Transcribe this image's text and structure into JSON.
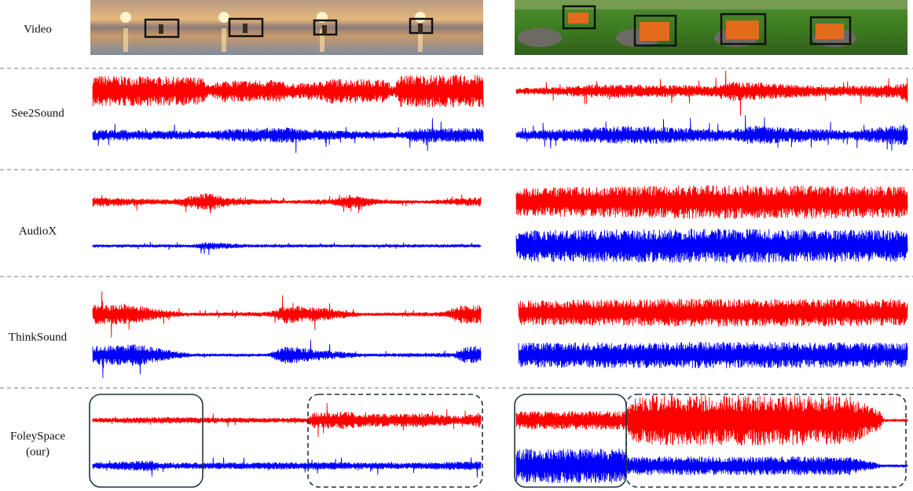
{
  "rows": [
    {
      "label": "Video"
    },
    {
      "label": "See2Sound"
    },
    {
      "label": "AudioX"
    },
    {
      "label": "ThinkSound"
    },
    {
      "label": "FoleySpace",
      "note": "(our)"
    }
  ]
}
